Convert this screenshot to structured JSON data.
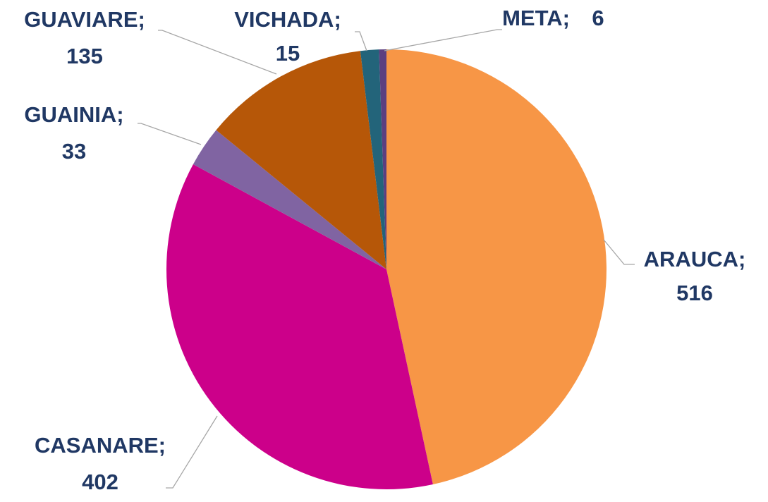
{
  "chart_data": {
    "type": "pie",
    "categories": [
      "ARAUCA;",
      "CASANARE;",
      "GUAINIA;",
      "GUAVIARE;",
      "VICHADA;",
      "META;"
    ],
    "values": [
      516,
      402,
      33,
      135,
      15,
      6
    ],
    "colors": [
      "#f79646",
      "#cc008a",
      "#8064a2",
      "#b65708",
      "#23647a",
      "#5b3f80"
    ]
  }
}
